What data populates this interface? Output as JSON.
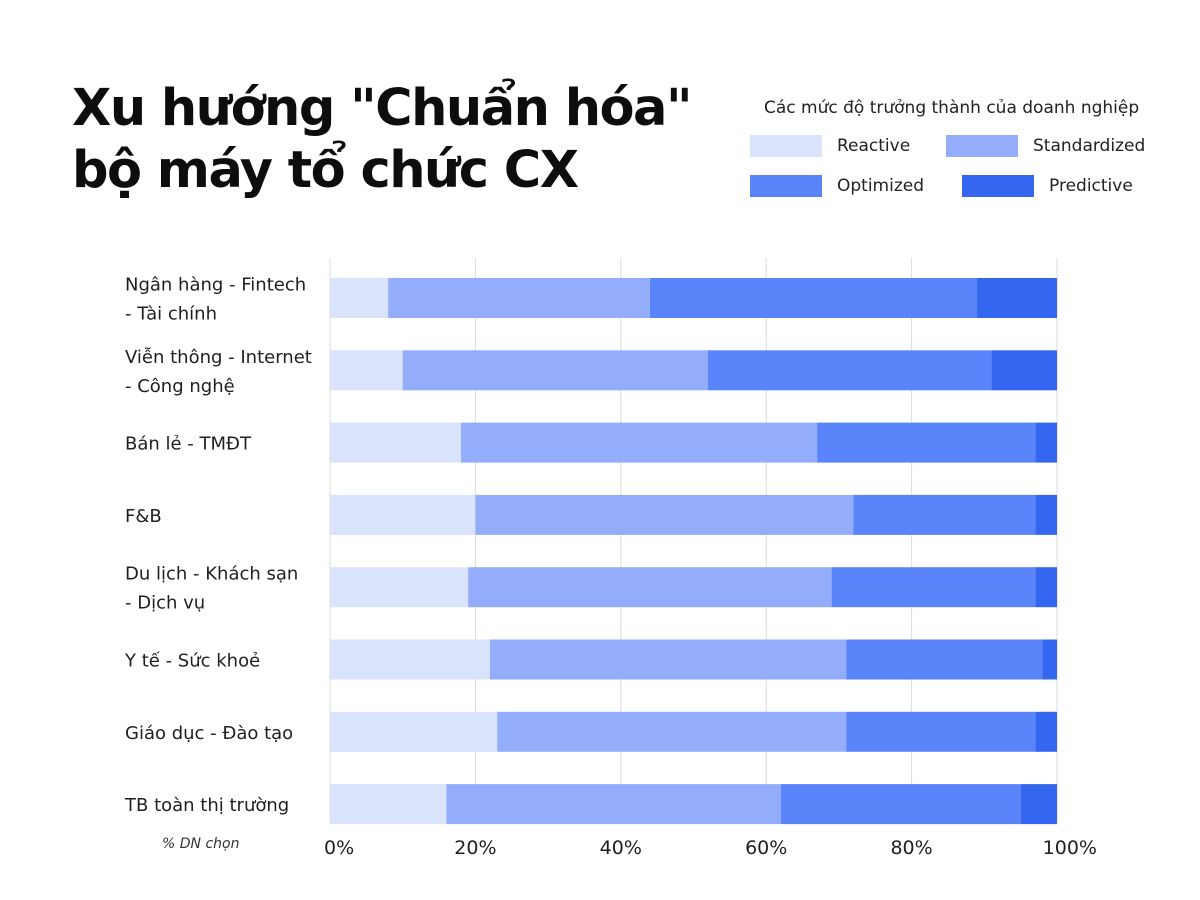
{
  "title": {
    "line1": "Xu hướng \"Chuẩn hóa\"",
    "line2": "bộ máy tổ chức CX"
  },
  "legend": {
    "title": "Các mức độ trưởng thành của doanh nghiệp",
    "position": "top-right"
  },
  "note": "% DN chọn",
  "colors": {
    "Reactive": "#d9e3fc",
    "Standardized": "#93adfb",
    "Optimized": "#5a84fa",
    "Predictive": "#3466f0",
    "grid": "#dcdcdc"
  },
  "chart_data": {
    "type": "bar",
    "orientation": "horizontal",
    "stacked": true,
    "xlim": [
      0,
      100
    ],
    "xticks": [
      "0%",
      "20%",
      "40%",
      "60%",
      "80%",
      "100%"
    ],
    "grid": true,
    "categories": [
      [
        "Ngân hàng - Fintech",
        "- Tài chính"
      ],
      [
        "Viễn thông - Internet",
        "- Công nghệ"
      ],
      [
        "Bán lẻ - TMĐT"
      ],
      [
        "F&B"
      ],
      [
        "Du lịch - Khách sạn",
        "- Dịch vụ"
      ],
      [
        "Y tế - Sức khoẻ"
      ],
      [
        "Giáo dục - Đào tạo"
      ],
      [
        "TB toàn thị trường"
      ]
    ],
    "series": [
      {
        "name": "Reactive",
        "values": [
          8,
          10,
          18,
          20,
          19,
          22,
          23,
          16
        ]
      },
      {
        "name": "Standardized",
        "values": [
          36,
          42,
          49,
          52,
          50,
          49,
          48,
          46
        ]
      },
      {
        "name": "Optimized",
        "values": [
          45,
          39,
          30,
          25,
          28,
          27,
          26,
          33
        ]
      },
      {
        "name": "Predictive",
        "values": [
          11,
          9,
          3,
          3,
          3,
          2,
          3,
          5
        ]
      }
    ]
  }
}
